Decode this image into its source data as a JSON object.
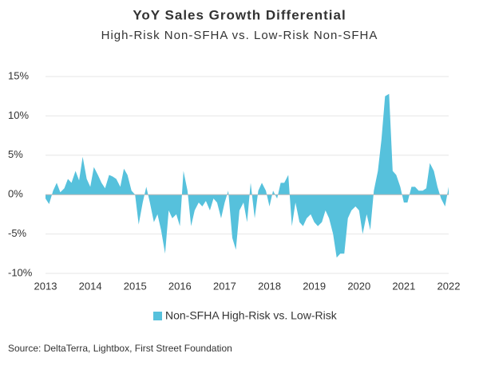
{
  "chart_data": {
    "type": "area",
    "title": "YoY Sales Growth Differential",
    "subtitle": "High-Risk Non-SFHA vs. Low-Risk Non-SFHA",
    "source": "Source: DeltaTerra, Lightbox, First Street Foundation",
    "xlim": [
      2013,
      2022
    ],
    "xticks": [
      2013,
      2014,
      2015,
      2016,
      2017,
      2018,
      2019,
      2020,
      2021,
      2022
    ],
    "ylim": [
      -10,
      15
    ],
    "yticks": [
      {
        "value": -10,
        "label": "-10%"
      },
      {
        "value": -5,
        "label": "-5%"
      },
      {
        "value": 0,
        "label": "0%"
      },
      {
        "value": 5,
        "label": "5%"
      },
      {
        "value": 10,
        "label": "10%"
      },
      {
        "value": 15,
        "label": "15%"
      }
    ],
    "grid": true,
    "legend": "bottom",
    "x": [
      2013.0,
      2013.08,
      2013.17,
      2013.25,
      2013.33,
      2013.42,
      2013.5,
      2013.58,
      2013.67,
      2013.75,
      2013.83,
      2013.92,
      2014.0,
      2014.08,
      2014.17,
      2014.25,
      2014.33,
      2014.42,
      2014.5,
      2014.58,
      2014.67,
      2014.75,
      2014.83,
      2014.92,
      2015.0,
      2015.08,
      2015.17,
      2015.25,
      2015.33,
      2015.42,
      2015.5,
      2015.58,
      2015.67,
      2015.75,
      2015.83,
      2015.92,
      2016.0,
      2016.08,
      2016.17,
      2016.25,
      2016.33,
      2016.42,
      2016.5,
      2016.58,
      2016.67,
      2016.75,
      2016.83,
      2016.92,
      2017.0,
      2017.08,
      2017.17,
      2017.25,
      2017.33,
      2017.42,
      2017.5,
      2017.58,
      2017.67,
      2017.75,
      2017.83,
      2017.92,
      2018.0,
      2018.08,
      2018.17,
      2018.25,
      2018.33,
      2018.42,
      2018.5,
      2018.58,
      2018.67,
      2018.75,
      2018.83,
      2018.92,
      2019.0,
      2019.08,
      2019.17,
      2019.25,
      2019.33,
      2019.42,
      2019.5,
      2019.58,
      2019.67,
      2019.75,
      2019.83,
      2019.92,
      2020.0,
      2020.08,
      2020.17,
      2020.25,
      2020.33,
      2020.42,
      2020.5,
      2020.58,
      2020.67,
      2020.75,
      2020.83,
      2020.92,
      2021.0,
      2021.08,
      2021.17,
      2021.25,
      2021.33,
      2021.42,
      2021.5,
      2021.58,
      2021.67,
      2021.75,
      2021.83,
      2021.92,
      2022.0
    ],
    "series": [
      {
        "name": "Non-SFHA High-Risk vs. Low-Risk",
        "color": "#56c1dc",
        "values": [
          -0.5,
          -1.2,
          0.5,
          1.5,
          0.3,
          0.8,
          2,
          1.5,
          3,
          1.8,
          4.8,
          2,
          1,
          3.5,
          2.5,
          1.5,
          0.8,
          2.5,
          2.3,
          2,
          1,
          3.3,
          2.5,
          0.5,
          0,
          -3.8,
          -1,
          1,
          -1,
          -3.5,
          -2.5,
          -4.5,
          -7.5,
          -2,
          -3,
          -2.5,
          -4,
          3,
          0.5,
          -4,
          -2,
          -1,
          -1.5,
          -0.8,
          -2,
          -0.5,
          -1,
          -3,
          -1,
          0.5,
          -5.5,
          -7,
          -2,
          -1,
          -3.5,
          1.5,
          -3,
          0.5,
          1.5,
          0.5,
          -1.5,
          0.5,
          -0.5,
          1.5,
          1.5,
          2.5,
          -4,
          -1,
          -3.5,
          -4,
          -3,
          -2.5,
          -3.5,
          -4,
          -3.5,
          -2,
          -3,
          -5,
          -8,
          -7.5,
          -7.5,
          -3,
          -2,
          -1.5,
          -2,
          -5,
          -2.5,
          -4.5,
          0.5,
          3,
          7,
          12.5,
          12.8,
          3,
          2.5,
          1,
          -1,
          -1,
          1,
          1,
          0.5,
          0.5,
          0.8,
          4,
          3,
          1,
          -0.5,
          -1.5,
          1
        ]
      }
    ]
  }
}
